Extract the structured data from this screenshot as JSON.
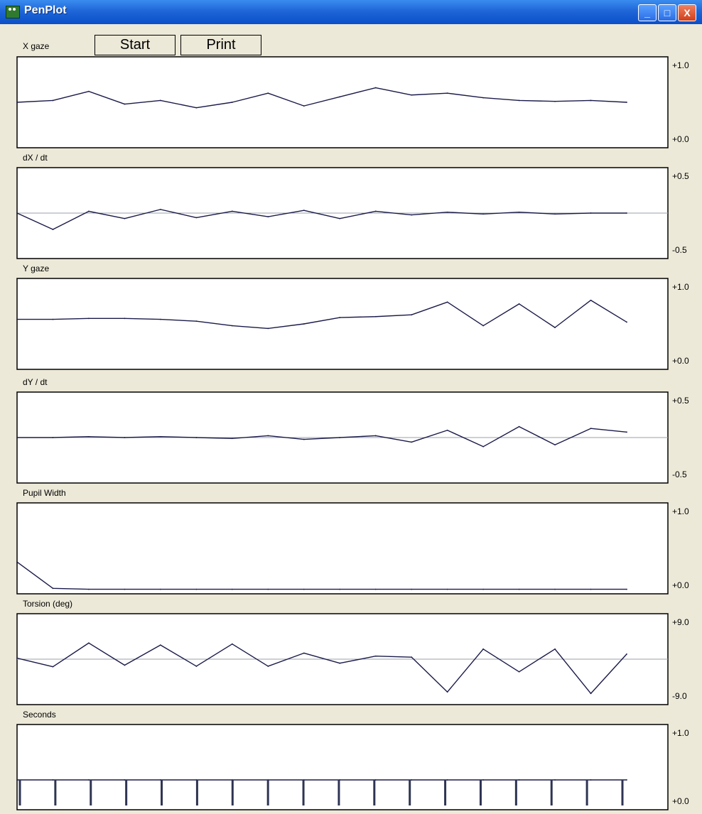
{
  "window": {
    "title": "PenPlot",
    "min_label": "_",
    "max_label": "□",
    "close_label": "X"
  },
  "toolbar": {
    "panel_label": "X gaze",
    "start_label": "Start",
    "print_label": "Print"
  },
  "colors": {
    "plot_line": "#1a1a4a",
    "zero_line": "#9aa0a8",
    "panel_bg": "#ffffff",
    "frame_bg": "#ece9d8"
  },
  "chart_data": [
    {
      "type": "line",
      "title": "X gaze",
      "xlabel": "",
      "ylabel": "",
      "ylim": [
        0,
        1
      ],
      "y_ticks": [
        "+1.0",
        "+0.0"
      ],
      "x": [
        0,
        1,
        2,
        3,
        4,
        5,
        6,
        7,
        8,
        9,
        10,
        11,
        12,
        13,
        14,
        15,
        16,
        17
      ],
      "series": [
        {
          "values": [
            0.5,
            0.52,
            0.62,
            0.48,
            0.52,
            0.44,
            0.5,
            0.6,
            0.46,
            0.56,
            0.66,
            0.58,
            0.6,
            0.55,
            0.52,
            0.51,
            0.52,
            0.5
          ]
        }
      ]
    },
    {
      "type": "line",
      "title": "dX / dt",
      "xlabel": "",
      "ylabel": "",
      "ylim": [
        -0.5,
        0.5
      ],
      "y_ticks": [
        "+0.5",
        "-0.5"
      ],
      "x": [
        0,
        1,
        2,
        3,
        4,
        5,
        6,
        7,
        8,
        9,
        10,
        11,
        12,
        13,
        14,
        15,
        16,
        17
      ],
      "series": [
        {
          "values": [
            0,
            -0.18,
            0.02,
            -0.06,
            0.04,
            -0.05,
            0.02,
            -0.04,
            0.03,
            -0.06,
            0.02,
            -0.02,
            0.01,
            -0.01,
            0.01,
            -0.01,
            0,
            0
          ]
        }
      ]
    },
    {
      "type": "line",
      "title": "Y gaze",
      "xlabel": "",
      "ylabel": "",
      "ylim": [
        0,
        1
      ],
      "y_ticks": [
        "+1.0",
        "+0.0"
      ],
      "x": [
        0,
        1,
        2,
        3,
        4,
        5,
        6,
        7,
        8,
        9,
        10,
        11,
        12,
        13,
        14,
        15,
        16,
        17
      ],
      "series": [
        {
          "values": [
            0.55,
            0.55,
            0.56,
            0.56,
            0.55,
            0.53,
            0.48,
            0.45,
            0.5,
            0.57,
            0.58,
            0.6,
            0.74,
            0.48,
            0.72,
            0.46,
            0.76,
            0.52
          ]
        }
      ]
    },
    {
      "type": "line",
      "title": "dY / dt",
      "xlabel": "",
      "ylabel": "",
      "ylim": [
        -0.5,
        0.5
      ],
      "y_ticks": [
        "+0.5",
        "-0.5"
      ],
      "x": [
        0,
        1,
        2,
        3,
        4,
        5,
        6,
        7,
        8,
        9,
        10,
        11,
        12,
        13,
        14,
        15,
        16,
        17
      ],
      "series": [
        {
          "values": [
            0,
            0,
            0.01,
            0,
            0.01,
            0,
            -0.01,
            0.02,
            -0.02,
            0,
            0.02,
            -0.05,
            0.08,
            -0.1,
            0.12,
            -0.08,
            0.1,
            0.06
          ]
        }
      ]
    },
    {
      "type": "line",
      "title": "Pupil Width",
      "xlabel": "",
      "ylabel": "",
      "ylim": [
        0,
        1
      ],
      "y_ticks": [
        "+1.0",
        "+0.0"
      ],
      "x": [
        0,
        1,
        2,
        3,
        4,
        5,
        6,
        7,
        8,
        9,
        10,
        11,
        12,
        13,
        14,
        15,
        16,
        17
      ],
      "series": [
        {
          "values": [
            0.35,
            0.06,
            0.05,
            0.05,
            0.05,
            0.05,
            0.05,
            0.05,
            0.05,
            0.05,
            0.05,
            0.05,
            0.05,
            0.05,
            0.05,
            0.05,
            0.05,
            0.05
          ]
        }
      ]
    },
    {
      "type": "line",
      "title": "Torsion (deg)",
      "xlabel": "",
      "ylabel": "",
      "ylim": [
        -9,
        9
      ],
      "y_ticks": [
        "+9.0",
        "-9.0"
      ],
      "x": [
        0,
        1,
        2,
        3,
        4,
        5,
        6,
        7,
        8,
        9,
        10,
        11,
        12,
        13,
        14,
        15,
        16,
        17
      ],
      "series": [
        {
          "values": [
            0.2,
            -1.5,
            3.2,
            -1.2,
            2.8,
            -1.4,
            3.0,
            -1.4,
            1.2,
            -0.8,
            0.6,
            0.4,
            -6.5,
            2.0,
            -2.5,
            2.0,
            -6.8,
            1.0
          ]
        }
      ]
    },
    {
      "type": "line",
      "title": "Seconds",
      "xlabel": "",
      "ylabel": "",
      "ylim": [
        0,
        1
      ],
      "y_ticks": [
        "+1.0",
        "+0.0"
      ],
      "x": [
        0,
        1,
        2,
        3,
        4,
        5,
        6,
        7,
        8,
        9,
        10,
        11,
        12,
        13,
        14,
        15,
        16,
        17
      ],
      "series": [
        {
          "values": [
            0.35,
            0.35,
            0.35,
            0.35,
            0.35,
            0.35,
            0.35,
            0.35,
            0.35,
            0.35,
            0.35,
            0.35,
            0.35,
            0.35,
            0.35,
            0.35,
            0.35,
            0.35
          ]
        }
      ]
    }
  ]
}
